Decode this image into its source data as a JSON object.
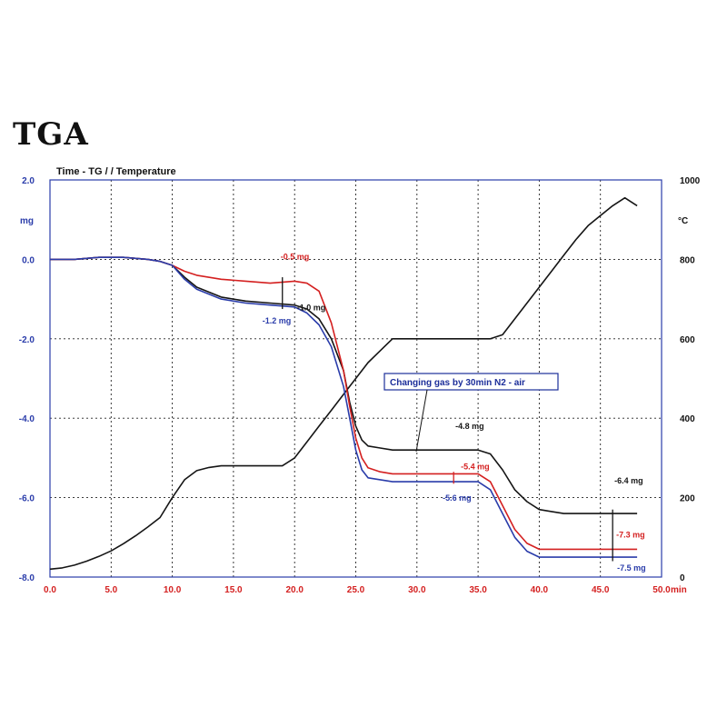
{
  "title": "TGA",
  "chart_data": {
    "type": "line",
    "subtitle": "Time - TG  /  / Temperature",
    "x_unit": "min",
    "y_left_unit": "mg",
    "y_right_unit": "°C",
    "xlim": [
      0,
      50
    ],
    "ylim_left": [
      -8,
      2
    ],
    "ylim_right": [
      0,
      1000
    ],
    "x_ticks": [
      "0.0",
      "5.0",
      "10.0",
      "15.0",
      "20.0",
      "25.0",
      "30.0",
      "35.0",
      "40.0",
      "45.0",
      "50.0"
    ],
    "y_left_ticks": [
      "2.0",
      "0.0",
      "-2.0",
      "-4.0",
      "-6.0",
      "-8.0"
    ],
    "y_right_ticks": [
      "1000",
      "800",
      "600",
      "400",
      "200",
      "0"
    ],
    "grid": true,
    "colors": {
      "black": "#151515",
      "red": "#d42020",
      "blue": "#2a3caa"
    },
    "series": [
      {
        "axis": "right",
        "color": "#151515",
        "x": [
          0,
          1,
          2,
          3,
          4,
          5,
          6,
          7,
          8,
          9,
          10,
          11,
          12,
          13,
          14,
          15,
          16,
          17,
          18,
          19,
          20,
          21,
          22,
          23,
          24,
          25,
          26,
          27,
          28,
          29,
          30,
          31,
          32,
          33,
          34,
          35,
          36,
          37,
          38,
          39,
          40,
          41,
          42,
          43,
          44,
          45,
          46,
          47,
          48
        ],
        "y": [
          20,
          23,
          30,
          40,
          52,
          66,
          84,
          104,
          126,
          150,
          200,
          245,
          268,
          276,
          280,
          280,
          280,
          280,
          280,
          280,
          300,
          340,
          380,
          420,
          460,
          500,
          540,
          570,
          600,
          600,
          600,
          600,
          600,
          600,
          600,
          600,
          600,
          610,
          650,
          690,
          730,
          770,
          810,
          850,
          885,
          910,
          935,
          955,
          935
        ]
      },
      {
        "axis": "left",
        "color": "#151515",
        "x": [
          0,
          2,
          4,
          6,
          8,
          9,
          10,
          11,
          12,
          14,
          16,
          18,
          20,
          21,
          22,
          23,
          24,
          24.5,
          25,
          25.5,
          26,
          27,
          28,
          30,
          32,
          34,
          35,
          36,
          37,
          38,
          39,
          40,
          41,
          42,
          44,
          46,
          48
        ],
        "y": [
          0.0,
          0.0,
          0.05,
          0.05,
          0.0,
          -0.05,
          -0.15,
          -0.45,
          -0.7,
          -0.95,
          -1.05,
          -1.1,
          -1.15,
          -1.25,
          -1.5,
          -2.0,
          -2.8,
          -3.6,
          -4.2,
          -4.55,
          -4.7,
          -4.75,
          -4.8,
          -4.8,
          -4.8,
          -4.8,
          -4.8,
          -4.9,
          -5.3,
          -5.8,
          -6.1,
          -6.3,
          -6.35,
          -6.4,
          -6.4,
          -6.4,
          -6.4
        ]
      },
      {
        "axis": "left",
        "color": "#d42020",
        "x": [
          0,
          2,
          4,
          6,
          8,
          9,
          10,
          11,
          12,
          14,
          16,
          18,
          20,
          21,
          22,
          23,
          24,
          24.5,
          25,
          25.5,
          26,
          27,
          28,
          30,
          32,
          34,
          35,
          36,
          37,
          38,
          39,
          40,
          41,
          42,
          44,
          46,
          48
        ],
        "y": [
          0.0,
          0.0,
          0.05,
          0.05,
          0.0,
          -0.05,
          -0.15,
          -0.3,
          -0.4,
          -0.5,
          -0.55,
          -0.6,
          -0.55,
          -0.6,
          -0.8,
          -1.6,
          -2.8,
          -3.7,
          -4.5,
          -5.0,
          -5.25,
          -5.35,
          -5.4,
          -5.4,
          -5.4,
          -5.4,
          -5.4,
          -5.6,
          -6.2,
          -6.8,
          -7.15,
          -7.3,
          -7.3,
          -7.3,
          -7.3,
          -7.3,
          -7.3
        ]
      },
      {
        "axis": "left",
        "color": "#2a3caa",
        "x": [
          0,
          2,
          4,
          6,
          8,
          9,
          10,
          11,
          12,
          14,
          16,
          18,
          20,
          21,
          22,
          23,
          24,
          24.5,
          25,
          25.5,
          26,
          27,
          28,
          30,
          32,
          34,
          35,
          36,
          37,
          38,
          39,
          40,
          41,
          42,
          44,
          46,
          48
        ],
        "y": [
          0.0,
          0.0,
          0.05,
          0.05,
          0.0,
          -0.05,
          -0.15,
          -0.5,
          -0.75,
          -1.0,
          -1.1,
          -1.15,
          -1.2,
          -1.35,
          -1.65,
          -2.2,
          -3.2,
          -4.0,
          -4.8,
          -5.3,
          -5.5,
          -5.55,
          -5.6,
          -5.6,
          -5.6,
          -5.6,
          -5.6,
          -5.8,
          -6.4,
          -7.0,
          -7.35,
          -7.5,
          -7.5,
          -7.5,
          -7.5,
          -7.5,
          -7.5
        ]
      }
    ],
    "annotations": [
      {
        "text": "-0.5 mg",
        "color": "#d42020",
        "x": 19,
        "y": -0.5,
        "axis": "left"
      },
      {
        "text": "-1.0 mg",
        "color": "#151515",
        "x": 19,
        "y": -1.05,
        "axis": "left"
      },
      {
        "text": "-1.2 mg",
        "color": "#2a3caa",
        "x": 19,
        "y": -1.2,
        "axis": "left"
      },
      {
        "text": "-4.8 mg",
        "color": "#151515",
        "x": 33,
        "y": -4.8,
        "axis": "left"
      },
      {
        "text": "-5.4 mg",
        "color": "#d42020",
        "x": 33,
        "y": -5.4,
        "axis": "left"
      },
      {
        "text": "-5.6 mg",
        "color": "#2a3caa",
        "x": 33,
        "y": -5.6,
        "axis": "left"
      },
      {
        "text": "-6.4 mg",
        "color": "#151515",
        "x": 46,
        "y": -6.4,
        "axis": "left"
      },
      {
        "text": "-7.3 mg",
        "color": "#d42020",
        "x": 46,
        "y": -7.3,
        "axis": "left"
      },
      {
        "text": "-7.5 mg",
        "color": "#2a3caa",
        "x": 46,
        "y": -7.5,
        "axis": "left"
      }
    ],
    "callout": "Changing gas by 30min N2 - air"
  }
}
